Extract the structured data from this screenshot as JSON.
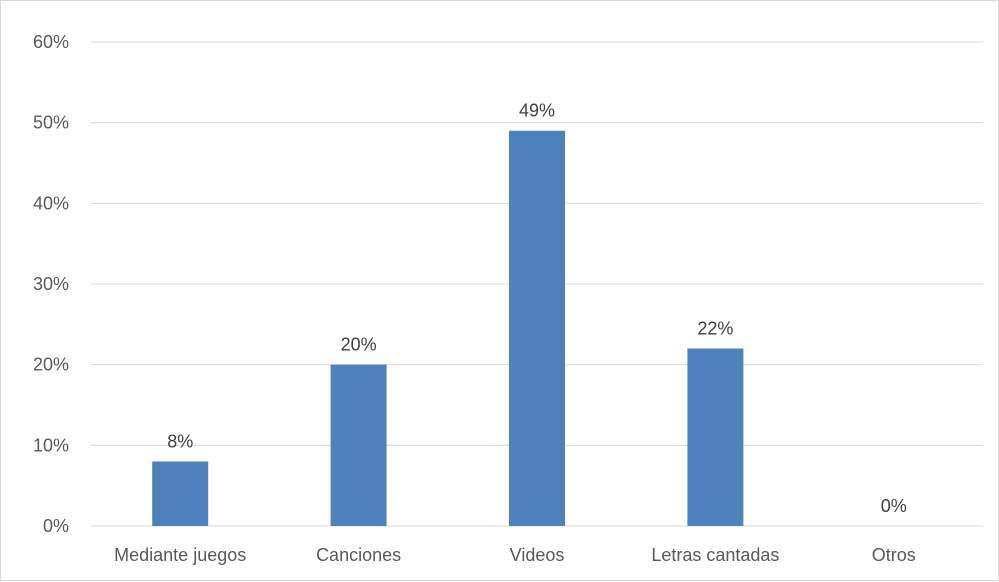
{
  "chart_data": {
    "type": "bar",
    "title": "",
    "xlabel": "",
    "ylabel": "",
    "categories": [
      "Mediante juegos",
      "Canciones",
      "Videos",
      "Letras cantadas",
      "Otros"
    ],
    "values": [
      8,
      20,
      49,
      22,
      0
    ],
    "data_labels": [
      "8%",
      "20%",
      "49%",
      "22%",
      "0%"
    ],
    "ylim": [
      0,
      60
    ],
    "yticks": [
      0,
      10,
      20,
      30,
      40,
      50,
      60
    ],
    "ytick_labels": [
      "0%",
      "10%",
      "20%",
      "30%",
      "40%",
      "50%",
      "60%"
    ],
    "grid": true,
    "legend": "none",
    "bar_color": "#4f81bd",
    "grid_color": "#d9d9d9"
  }
}
